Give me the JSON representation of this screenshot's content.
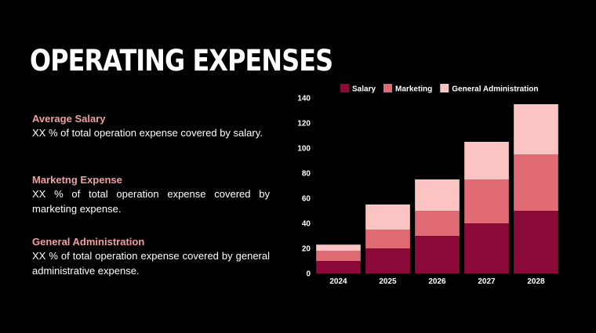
{
  "slide": {
    "title": "OPERATING EXPENSES"
  },
  "items": [
    {
      "title": "Average Salary",
      "desc": "XX % of total operation expense covered by salary."
    },
    {
      "title": "Marketng Expense",
      "desc": "XX % of total operation expense covered by marketing expense."
    },
    {
      "title": "General Administration",
      "desc": "XX % of total operation expense covered by general administrative expense."
    }
  ],
  "chart_data": {
    "type": "bar",
    "stacked": true,
    "title": "",
    "xlabel": "",
    "ylabel": "",
    "categories": [
      "2024",
      "2025",
      "2026",
      "2027",
      "2028"
    ],
    "series": [
      {
        "name": "Salary",
        "values": [
          10,
          20,
          30,
          40,
          50
        ],
        "color": "#8b0a3a"
      },
      {
        "name": "Marketing",
        "values": [
          8,
          15,
          20,
          35,
          45
        ],
        "color": "#e06b75"
      },
      {
        "name": "General Administration",
        "values": [
          5,
          20,
          25,
          30,
          40
        ],
        "color": "#fbc4c2"
      }
    ],
    "ylim": [
      0,
      140
    ],
    "yticks": [
      0,
      20,
      40,
      60,
      80,
      100,
      120,
      140
    ],
    "grid": false,
    "legend": "top"
  }
}
